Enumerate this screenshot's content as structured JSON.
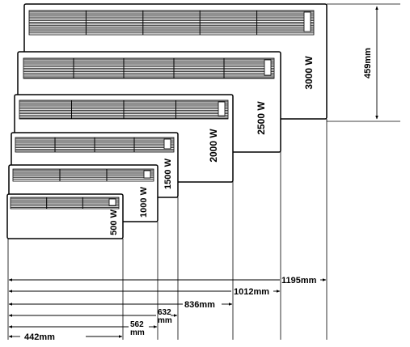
{
  "heaters": [
    {
      "power": "3000 W"
    },
    {
      "power": "2500 W"
    },
    {
      "power": "2000 W"
    },
    {
      "power": "1500 W"
    },
    {
      "power": "1000 W"
    },
    {
      "power": "500 W"
    }
  ],
  "height_dimension": "459mm",
  "width_dimensions": [
    {
      "label": "1195mm"
    },
    {
      "label": "1012mm"
    },
    {
      "label": "836mm"
    },
    {
      "label_line1": "632",
      "label_line2": "mm"
    },
    {
      "label_line1": "562",
      "label_line2": "mm"
    },
    {
      "label": "442mm"
    }
  ]
}
